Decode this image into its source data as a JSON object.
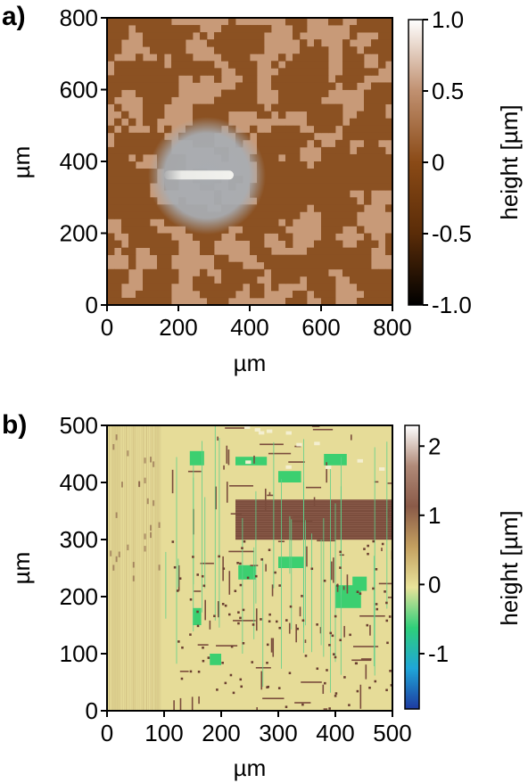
{
  "chart_data": [
    {
      "panel": "a)",
      "type": "heatmap",
      "xlabel": "µm",
      "ylabel": "µm",
      "xticks": [
        "0",
        "200",
        "400",
        "600",
        "800"
      ],
      "yticks": [
        "0",
        "200",
        "400",
        "600",
        "800"
      ],
      "xlim": [
        0,
        800
      ],
      "ylim": [
        0,
        800
      ],
      "colorbar": {
        "label": "height [µm]",
        "ticks": [
          "-1.0",
          "-0.5",
          "0",
          "0.5",
          "1.0"
        ],
        "range": [
          -1.0,
          1.0
        ],
        "colors": [
          "#000000",
          "#5a2c08",
          "#8a4a16",
          "#c09070",
          "#ffffff"
        ]
      },
      "features": {
        "pattern_colors": [
          "#8b5122",
          "#c89a78"
        ],
        "spot_center_um": [
          280,
          360
        ],
        "spot_radius_um": 165,
        "spot_color": "#a8adb3",
        "streak_um": {
          "x0": 160,
          "x1": 355,
          "y": 362
        },
        "streak_color": "#f2f2ee"
      }
    },
    {
      "panel": "b)",
      "type": "heatmap",
      "xlabel": "µm",
      "ylabel": "µm",
      "xticks": [
        "0",
        "100",
        "200",
        "300",
        "400",
        "500"
      ],
      "yticks": [
        "0",
        "100",
        "200",
        "300",
        "400",
        "500"
      ],
      "xlim": [
        0,
        500
      ],
      "ylim": [
        0,
        500
      ],
      "colorbar": {
        "label": "height [µm]",
        "ticks": [
          "-1",
          "0",
          "1",
          "2"
        ],
        "range": [
          -1.8,
          2.3
        ],
        "colors": [
          "#1e3aa0",
          "#1fa6d8",
          "#2ecf7a",
          "#e8e39a",
          "#c4a060",
          "#8a5a48",
          "#b08a78",
          "#ffffff"
        ]
      },
      "features": {
        "base_color": "#e6dc98",
        "metal_color": "#7a4c3c",
        "green_color": "#3ccf70",
        "big_block_um": {
          "x0": 225,
          "x1": 500,
          "y0": 300,
          "y1": 370
        },
        "stripes_region_um": {
          "x0": 0,
          "x1": 95,
          "y0": 0,
          "y1": 500
        }
      }
    }
  ]
}
